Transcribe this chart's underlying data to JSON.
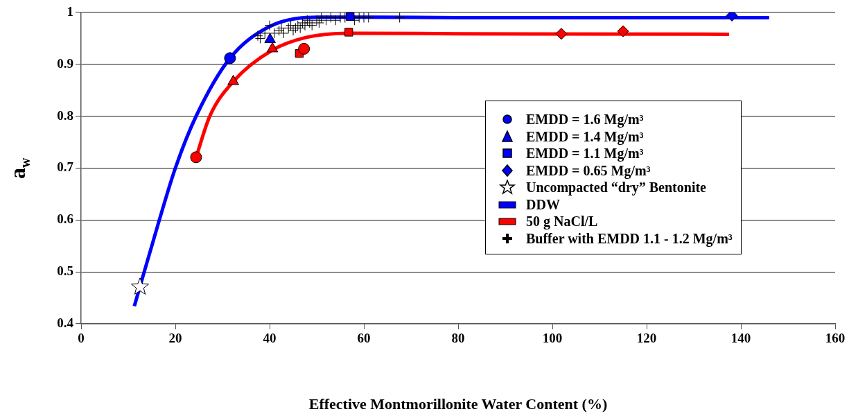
{
  "chart_data": {
    "type": "scatter",
    "xlabel": "Effective Montmorillonite Water Content (%)",
    "ylabel": "a$_{w}$",
    "xlim": [
      0,
      160
    ],
    "xticks": [
      0,
      20,
      40,
      60,
      80,
      100,
      120,
      140,
      160
    ],
    "ylim": [
      0.4,
      1
    ],
    "yticks": [
      0.4,
      0.5,
      0.6,
      0.7,
      0.8,
      0.9,
      1
    ],
    "grid": "y",
    "legend": "right",
    "series": [
      {
        "name": "EMDD = 1.6 Mg/m³",
        "type": "scatter",
        "marker": "circle",
        "x": [
          31.6,
          24.4,
          47.3
        ],
        "values": [
          0.912,
          0.721,
          0.93
        ],
        "colors": [
          "#0000ff",
          "#ff0000",
          "#ff0000"
        ]
      },
      {
        "name": "EMDD = 1.4 Mg/m³",
        "type": "scatter",
        "marker": "triangle",
        "x": [
          40.1,
          40.6,
          32.3
        ],
        "values": [
          0.948,
          0.93,
          0.867
        ],
        "colors": [
          "#0000ff",
          "#ff0000",
          "#ff0000"
        ]
      },
      {
        "name": "EMDD = 1.1 Mg/m³",
        "type": "scatter",
        "marker": "square",
        "x": [
          57.1,
          46.3,
          56.8
        ],
        "values": [
          0.992,
          0.921,
          0.962
        ],
        "colors": [
          "#0000ff",
          "#ff0000",
          "#ff0000"
        ]
      },
      {
        "name": "EMDD = 0.65 Mg/m³",
        "type": "scatter",
        "marker": "diamond",
        "x": [
          138.1,
          101.9,
          115.0
        ],
        "values": [
          0.994,
          0.959,
          0.964
        ],
        "colors": [
          "#0000ff",
          "#ff0000",
          "#ff0000"
        ]
      },
      {
        "name": "Uncompacted “dry” Bentonite",
        "type": "scatter",
        "marker": "star",
        "x": [
          12.5
        ],
        "values": [
          0.471
        ],
        "colors": [
          "#ffffff"
        ]
      },
      {
        "name": "DDW",
        "type": "line",
        "marker": "none",
        "color": "#0000ff",
        "x": [
          11.3,
          16.5,
          20,
          24.4,
          31.6,
          40,
          50.7,
          60,
          80,
          146
        ],
        "values": [
          0.434,
          0.597,
          0.7,
          0.8,
          0.912,
          0.973,
          0.991,
          0.991,
          0.99,
          0.99
        ]
      },
      {
        "name": "50 g NaCl/L",
        "type": "line",
        "marker": "none",
        "color": "#ff0000",
        "x": [
          24.4,
          27.3,
          32.3,
          40.5,
          47.8,
          56.8,
          80,
          137.5
        ],
        "values": [
          0.721,
          0.8,
          0.867,
          0.927,
          0.952,
          0.96,
          0.959,
          0.958
        ]
      },
      {
        "name": "Buffer with EMDD 1.1 - 1.2 Mg/m³",
        "type": "scatter",
        "marker": "cross",
        "color": "#000000",
        "x": [
          37.5,
          38,
          39,
          40,
          41,
          42,
          42.5,
          43,
          44,
          44.5,
          45,
          45.5,
          46,
          46.5,
          47,
          47.5,
          48,
          48.5,
          49,
          50,
          50.5,
          51,
          52,
          53,
          54,
          55,
          56,
          58,
          59,
          60,
          61,
          67.6
        ],
        "values": [
          0.955,
          0.95,
          0.96,
          0.975,
          0.96,
          0.965,
          0.97,
          0.96,
          0.97,
          0.975,
          0.965,
          0.97,
          0.975,
          0.97,
          0.98,
          0.975,
          0.985,
          0.98,
          0.975,
          0.985,
          0.98,
          0.99,
          0.985,
          0.99,
          0.985,
          0.99,
          0.99,
          0.985,
          0.99,
          0.99,
          0.99,
          0.99
        ]
      }
    ]
  }
}
